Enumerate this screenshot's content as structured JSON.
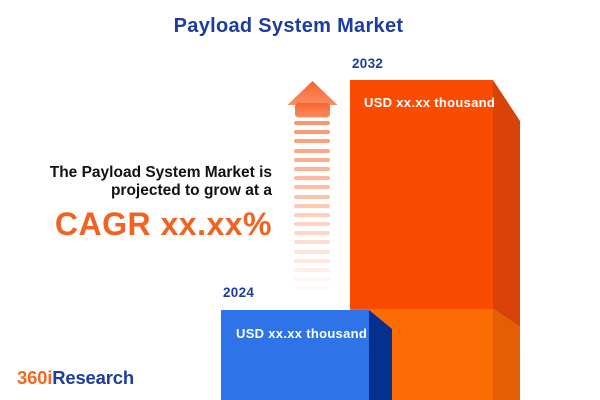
{
  "title": "Payload System Market",
  "annotation": {
    "line1": "The Payload System Market is",
    "line2": "projected to grow at a",
    "cagr": "CAGR xx.xx%"
  },
  "bars": {
    "y2032": {
      "year": "2032",
      "value_label": "USD xx.xx thousand"
    },
    "y2024": {
      "year": "2024",
      "value_label": "USD xx.xx thousand"
    }
  },
  "logo": {
    "prefix": "360i",
    "suffix": "Research"
  },
  "colors": {
    "heading_blue": "#1e3ca0",
    "accent_orange": "#f26322",
    "bar_2032_front": "#fa4b03",
    "bar_2032_side": "#d94208",
    "bar_2032_overlap_front": "#fb6c04",
    "bar_2032_overlap_side": "#e55e04",
    "bar_2024_front": "#2e74e8",
    "bar_2024_side": "#05318e",
    "arrow_orange": "#f97a4a",
    "value_text": "#ffffff"
  },
  "chart_data": {
    "type": "bar",
    "categories": [
      "2024",
      "2032"
    ],
    "values": [
      null,
      null
    ],
    "value_labels": [
      "USD xx.xx thousand",
      "USD xx.xx thousand"
    ],
    "title": "Payload System Market",
    "annotation": "The Payload System Market is projected to grow at a CAGR xx.xx%",
    "xlabel": "",
    "ylabel": "",
    "legend": false
  }
}
